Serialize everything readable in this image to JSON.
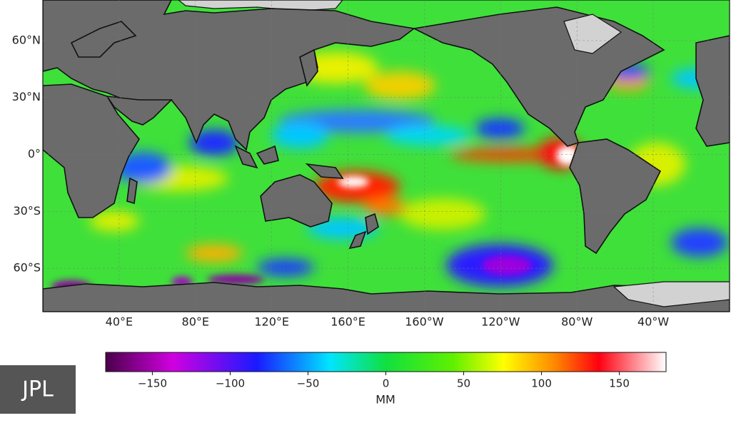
{
  "map": {
    "lon_range": [
      0,
      360
    ],
    "lat_range": [
      -82.9,
      81.4
    ],
    "lat_labels": [
      {
        "value": 60,
        "label": "60°N"
      },
      {
        "value": 30,
        "label": "30°N"
      },
      {
        "value": 0,
        "label": "0°"
      },
      {
        "value": -30,
        "label": "30°S"
      },
      {
        "value": -60,
        "label": "60°S"
      }
    ],
    "lon_labels": [
      {
        "value": 40,
        "label": "40°E"
      },
      {
        "value": 80,
        "label": "80°E"
      },
      {
        "value": 120,
        "label": "120°E"
      },
      {
        "value": 160,
        "label": "160°E"
      },
      {
        "value": 200,
        "label": "160°W"
      },
      {
        "value": 240,
        "label": "120°W"
      },
      {
        "value": 280,
        "label": "80°W"
      },
      {
        "value": 320,
        "label": "40°W"
      }
    ]
  },
  "colorbar": {
    "range": [
      -180,
      180
    ],
    "ticks": [
      {
        "value": -150,
        "label": "−150"
      },
      {
        "value": -100,
        "label": "−100"
      },
      {
        "value": -50,
        "label": "−50"
      },
      0,
      50,
      100,
      150
    ],
    "label": "MM"
  },
  "logo": "JPL"
}
